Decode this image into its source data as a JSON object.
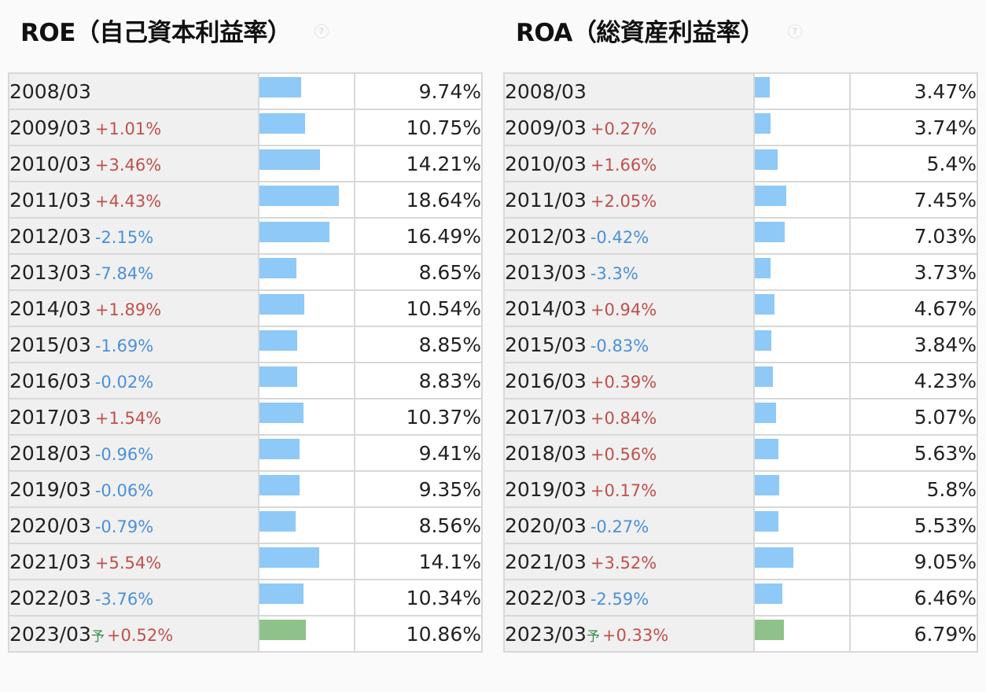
{
  "roe": {
    "title": "ROE（自己資本利益率）",
    "help_icon": "?",
    "rows": [
      {
        "year": "2008/03",
        "change": "",
        "dir": "",
        "forecast": "",
        "value": "9.74%",
        "num": 9.74
      },
      {
        "year": "2009/03",
        "change": "+1.01%",
        "dir": "up",
        "forecast": "",
        "value": "10.75%",
        "num": 10.75
      },
      {
        "year": "2010/03",
        "change": "+3.46%",
        "dir": "up",
        "forecast": "",
        "value": "14.21%",
        "num": 14.21
      },
      {
        "year": "2011/03",
        "change": "+4.43%",
        "dir": "up",
        "forecast": "",
        "value": "18.64%",
        "num": 18.64
      },
      {
        "year": "2012/03",
        "change": "-2.15%",
        "dir": "down",
        "forecast": "",
        "value": "16.49%",
        "num": 16.49
      },
      {
        "year": "2013/03",
        "change": "-7.84%",
        "dir": "down",
        "forecast": "",
        "value": "8.65%",
        "num": 8.65
      },
      {
        "year": "2014/03",
        "change": "+1.89%",
        "dir": "up",
        "forecast": "",
        "value": "10.54%",
        "num": 10.54
      },
      {
        "year": "2015/03",
        "change": "-1.69%",
        "dir": "down",
        "forecast": "",
        "value": "8.85%",
        "num": 8.85
      },
      {
        "year": "2016/03",
        "change": "-0.02%",
        "dir": "down",
        "forecast": "",
        "value": "8.83%",
        "num": 8.83
      },
      {
        "year": "2017/03",
        "change": "+1.54%",
        "dir": "up",
        "forecast": "",
        "value": "10.37%",
        "num": 10.37
      },
      {
        "year": "2018/03",
        "change": "-0.96%",
        "dir": "down",
        "forecast": "",
        "value": "9.41%",
        "num": 9.41
      },
      {
        "year": "2019/03",
        "change": "-0.06%",
        "dir": "down",
        "forecast": "",
        "value": "9.35%",
        "num": 9.35
      },
      {
        "year": "2020/03",
        "change": "-0.79%",
        "dir": "down",
        "forecast": "",
        "value": "8.56%",
        "num": 8.56
      },
      {
        "year": "2021/03",
        "change": "+5.54%",
        "dir": "up",
        "forecast": "",
        "value": "14.1%",
        "num": 14.1
      },
      {
        "year": "2022/03",
        "change": "-3.76%",
        "dir": "down",
        "forecast": "",
        "value": "10.34%",
        "num": 10.34
      },
      {
        "year": "2023/03",
        "change": "+0.52%",
        "dir": "up",
        "forecast": "予",
        "value": "10.86%",
        "num": 10.86
      }
    ]
  },
  "roa": {
    "title": "ROA（総資産利益率）",
    "help_icon": "?",
    "rows": [
      {
        "year": "2008/03",
        "change": "",
        "dir": "",
        "forecast": "",
        "value": "3.47%",
        "num": 3.47
      },
      {
        "year": "2009/03",
        "change": "+0.27%",
        "dir": "up",
        "forecast": "",
        "value": "3.74%",
        "num": 3.74
      },
      {
        "year": "2010/03",
        "change": "+1.66%",
        "dir": "up",
        "forecast": "",
        "value": "5.4%",
        "num": 5.4
      },
      {
        "year": "2011/03",
        "change": "+2.05%",
        "dir": "up",
        "forecast": "",
        "value": "7.45%",
        "num": 7.45
      },
      {
        "year": "2012/03",
        "change": "-0.42%",
        "dir": "down",
        "forecast": "",
        "value": "7.03%",
        "num": 7.03
      },
      {
        "year": "2013/03",
        "change": "-3.3%",
        "dir": "down",
        "forecast": "",
        "value": "3.73%",
        "num": 3.73
      },
      {
        "year": "2014/03",
        "change": "+0.94%",
        "dir": "up",
        "forecast": "",
        "value": "4.67%",
        "num": 4.67
      },
      {
        "year": "2015/03",
        "change": "-0.83%",
        "dir": "down",
        "forecast": "",
        "value": "3.84%",
        "num": 3.84
      },
      {
        "year": "2016/03",
        "change": "+0.39%",
        "dir": "up",
        "forecast": "",
        "value": "4.23%",
        "num": 4.23
      },
      {
        "year": "2017/03",
        "change": "+0.84%",
        "dir": "up",
        "forecast": "",
        "value": "5.07%",
        "num": 5.07
      },
      {
        "year": "2018/03",
        "change": "+0.56%",
        "dir": "up",
        "forecast": "",
        "value": "5.63%",
        "num": 5.63
      },
      {
        "year": "2019/03",
        "change": "+0.17%",
        "dir": "up",
        "forecast": "",
        "value": "5.8%",
        "num": 5.8
      },
      {
        "year": "2020/03",
        "change": "-0.27%",
        "dir": "down",
        "forecast": "",
        "value": "5.53%",
        "num": 5.53
      },
      {
        "year": "2021/03",
        "change": "+3.52%",
        "dir": "up",
        "forecast": "",
        "value": "9.05%",
        "num": 9.05
      },
      {
        "year": "2022/03",
        "change": "-2.59%",
        "dir": "down",
        "forecast": "",
        "value": "6.46%",
        "num": 6.46
      },
      {
        "year": "2023/03",
        "change": "+0.33%",
        "dir": "up",
        "forecast": "予",
        "value": "6.79%",
        "num": 6.79
      }
    ]
  },
  "colors": {
    "bar_actual": "#8ec9f8",
    "bar_forecast": "#8fc28a",
    "change_up": "#c0504d",
    "change_down": "#4a90d9",
    "forecast_mark": "#3a8a4a"
  }
}
